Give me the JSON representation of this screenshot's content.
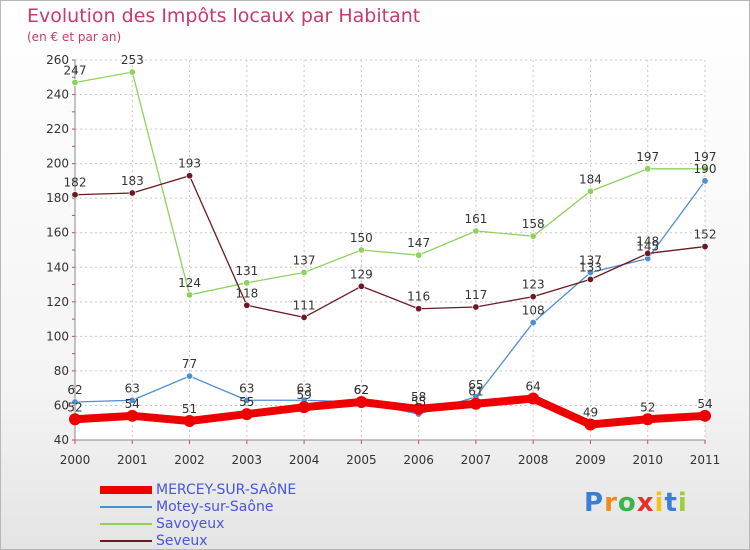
{
  "chart_data": {
    "type": "line",
    "title": "Evolution des Impôts locaux par Habitant",
    "subtitle": "(en € et par an)",
    "xlabel": "",
    "ylabel": "",
    "ylim": [
      40,
      260
    ],
    "yticks": [
      40,
      60,
      80,
      100,
      120,
      140,
      160,
      180,
      200,
      220,
      240,
      260
    ],
    "categories": [
      "2000",
      "2001",
      "2002",
      "2003",
      "2004",
      "2005",
      "2006",
      "2007",
      "2008",
      "2009",
      "2010",
      "2011"
    ],
    "grid": true,
    "legend_position": "bottom-left",
    "series": [
      {
        "name": "MERCEY-SUR-SAôNE",
        "color": "#ee0000",
        "values": [
          52,
          54,
          51,
          55,
          59,
          62,
          58,
          61,
          64,
          49,
          52,
          54
        ]
      },
      {
        "name": "Motey-sur-Saône",
        "color": "#4f8fd0",
        "values": [
          62,
          63,
          77,
          63,
          63,
          62,
          55,
          65,
          108,
          137,
          145,
          190
        ]
      },
      {
        "name": "Savoyeux",
        "color": "#8ed25c",
        "values": [
          247,
          253,
          124,
          131,
          137,
          150,
          147,
          161,
          158,
          184,
          197,
          197
        ]
      },
      {
        "name": "Seveux",
        "color": "#6b1a24",
        "values": [
          182,
          183,
          193,
          118,
          111,
          129,
          116,
          117,
          123,
          133,
          148,
          152
        ]
      }
    ]
  },
  "brand": {
    "letters": [
      "P",
      "r",
      "o",
      "x",
      "i",
      "t",
      "i"
    ],
    "colors": [
      "#3a7fd6",
      "#f08a1e",
      "#3ab54a",
      "#e0342c",
      "#f2c21a",
      "#3a7fd6",
      "#9ccf3a"
    ]
  }
}
